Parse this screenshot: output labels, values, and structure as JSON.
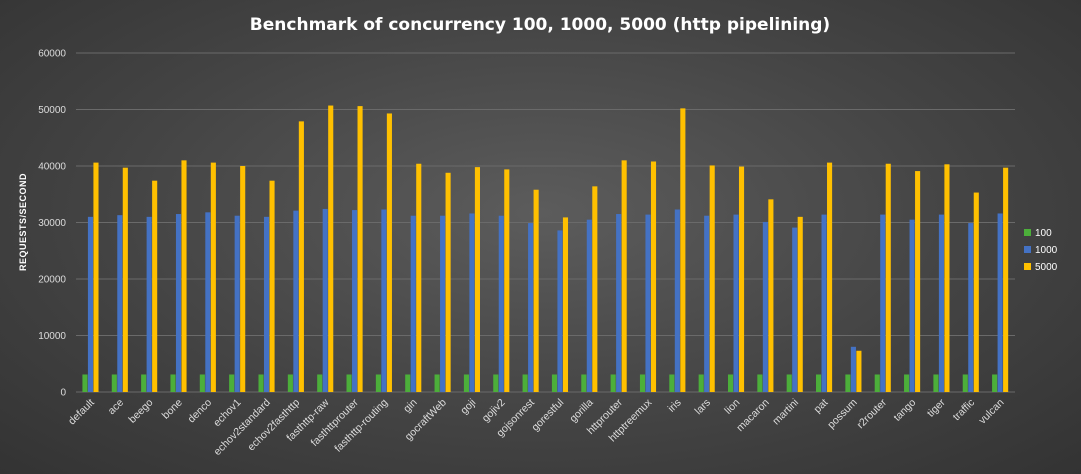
{
  "chart_data": {
    "type": "bar",
    "title": "Benchmark  of concurrency  100, 1000, 5000 (http pipelining)",
    "xlabel": "",
    "ylabel": "REQUESTS/SECOND",
    "ylim": [
      0,
      60000
    ],
    "yticks": [
      0,
      10000,
      20000,
      30000,
      40000,
      50000,
      60000
    ],
    "grid": true,
    "legend_position": "right",
    "categories": [
      "default",
      "ace",
      "beego",
      "bone",
      "denco",
      "echov1",
      "echov2standard",
      "echov2fasthttp",
      "fasthttp-raw",
      "fasthttprouter",
      "fasthttp-routing",
      "gin",
      "gocraftWeb",
      "goji",
      "gojiv2",
      "gojsonrest",
      "gorestful",
      "gorilla",
      "httprouter",
      "httptreemux",
      "iris",
      "lars",
      "lion",
      "macaron",
      "martini",
      "pat",
      "possum",
      "r2router",
      "tango",
      "tiger",
      "traffic",
      "vulcan"
    ],
    "series": [
      {
        "name": "100",
        "color": "#4caf3a",
        "values": [
          3100,
          3100,
          3100,
          3100,
          3100,
          3100,
          3100,
          3100,
          3100,
          3100,
          3100,
          3100,
          3100,
          3100,
          3100,
          3100,
          3100,
          3100,
          3100,
          3100,
          3100,
          3100,
          3100,
          3100,
          3100,
          3100,
          3100,
          3100,
          3100,
          3100,
          3100,
          3100
        ]
      },
      {
        "name": "1000",
        "color": "#4472c4",
        "values": [
          31000,
          31300,
          31000,
          31500,
          31800,
          31200,
          31000,
          32100,
          32400,
          32200,
          32300,
          31200,
          31200,
          31600,
          31200,
          29900,
          28600,
          30500,
          31500,
          31400,
          32300,
          31200,
          31400,
          30100,
          29100,
          31400,
          8000,
          31400,
          30500,
          31400,
          29900,
          31600
        ]
      },
      {
        "name": "5000",
        "color": "#ffc000",
        "values": [
          40600,
          39700,
          37400,
          41000,
          40600,
          40000,
          37400,
          47900,
          50700,
          50600,
          49300,
          40400,
          38800,
          39800,
          39400,
          35800,
          30900,
          36400,
          41000,
          40800,
          50200,
          40100,
          39900,
          34100,
          31000,
          40600,
          7300,
          40400,
          39100,
          40300,
          35300,
          39700
        ]
      }
    ]
  }
}
